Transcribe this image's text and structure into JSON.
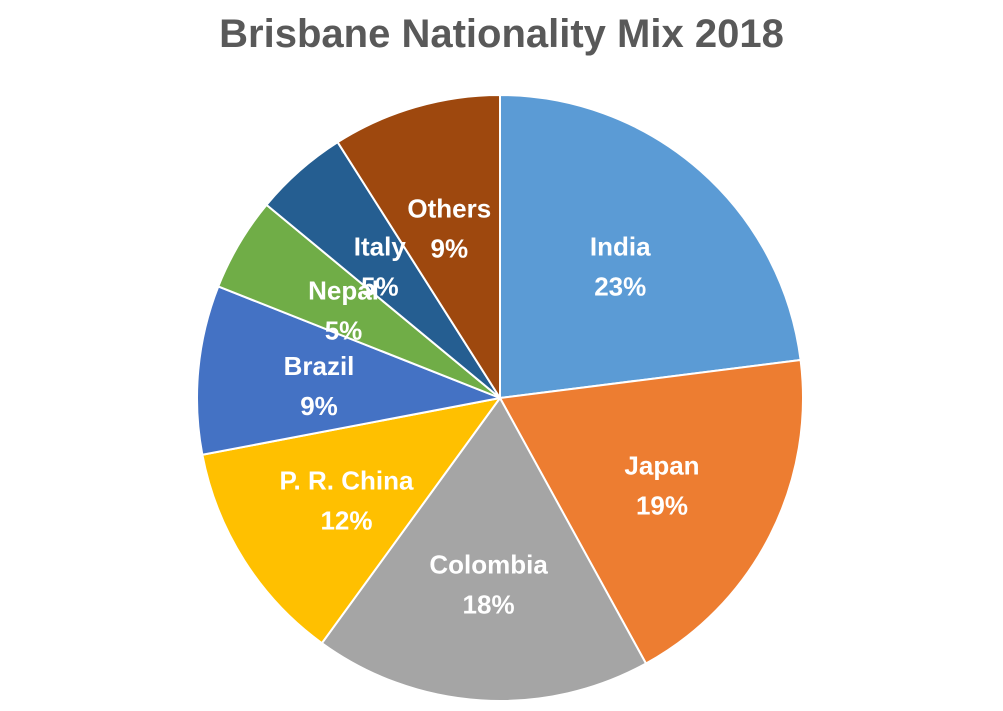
{
  "chart_data": {
    "type": "pie",
    "title": "Brisbane Nationality Mix 2018",
    "slices": [
      {
        "label": "India",
        "value": 23,
        "value_label": "23%",
        "color": "#5B9BD5"
      },
      {
        "label": "Japan",
        "value": 19,
        "value_label": "19%",
        "color": "#ED7D31"
      },
      {
        "label": "Colombia",
        "value": 18,
        "value_label": "18%",
        "color": "#A5A5A5"
      },
      {
        "label": "P. R. China",
        "value": 12,
        "value_label": "12%",
        "color": "#FFC000"
      },
      {
        "label": "Brazil",
        "value": 9,
        "value_label": "9%",
        "color": "#4472C4"
      },
      {
        "label": "Nepal",
        "value": 5,
        "value_label": "5%",
        "color": "#70AD47"
      },
      {
        "label": "Italy",
        "value": 5,
        "value_label": "5%",
        "color": "#255E91"
      },
      {
        "label": "Others",
        "value": 9,
        "value_label": "9%",
        "color": "#9E480E"
      }
    ],
    "legend": "none",
    "data_labels": "inside"
  }
}
